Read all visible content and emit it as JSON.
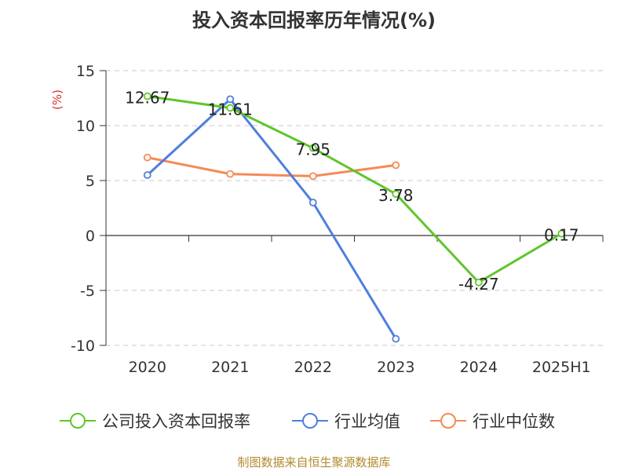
{
  "title": "投入资本回报率历年情况(%)",
  "source": "制图数据来自恒生聚源数据库",
  "chart_data": {
    "type": "line",
    "ylabel": "(%)",
    "ylim": [
      -10,
      15
    ],
    "yticks": [
      15,
      10,
      5,
      0,
      -5,
      -10
    ],
    "categories": [
      "2020",
      "2021",
      "2022",
      "2023",
      "2024",
      "2025H1"
    ],
    "grid": true,
    "legend_position": "bottom",
    "series": [
      {
        "name": "公司投入资本回报率",
        "color": "#5fc62a",
        "values": [
          12.67,
          11.61,
          7.95,
          3.78,
          -4.27,
          0.17
        ],
        "labels": [
          "12.67",
          "11.61",
          "7.95",
          "3.78",
          "-4.27",
          "0.17"
        ]
      },
      {
        "name": "行业均值",
        "color": "#4f7fdc",
        "values": [
          5.5,
          12.4,
          3.0,
          -9.4,
          null,
          null
        ]
      },
      {
        "name": "行业中位数",
        "color": "#f58a55",
        "values": [
          7.1,
          5.6,
          5.4,
          6.4,
          null,
          null
        ]
      }
    ]
  }
}
